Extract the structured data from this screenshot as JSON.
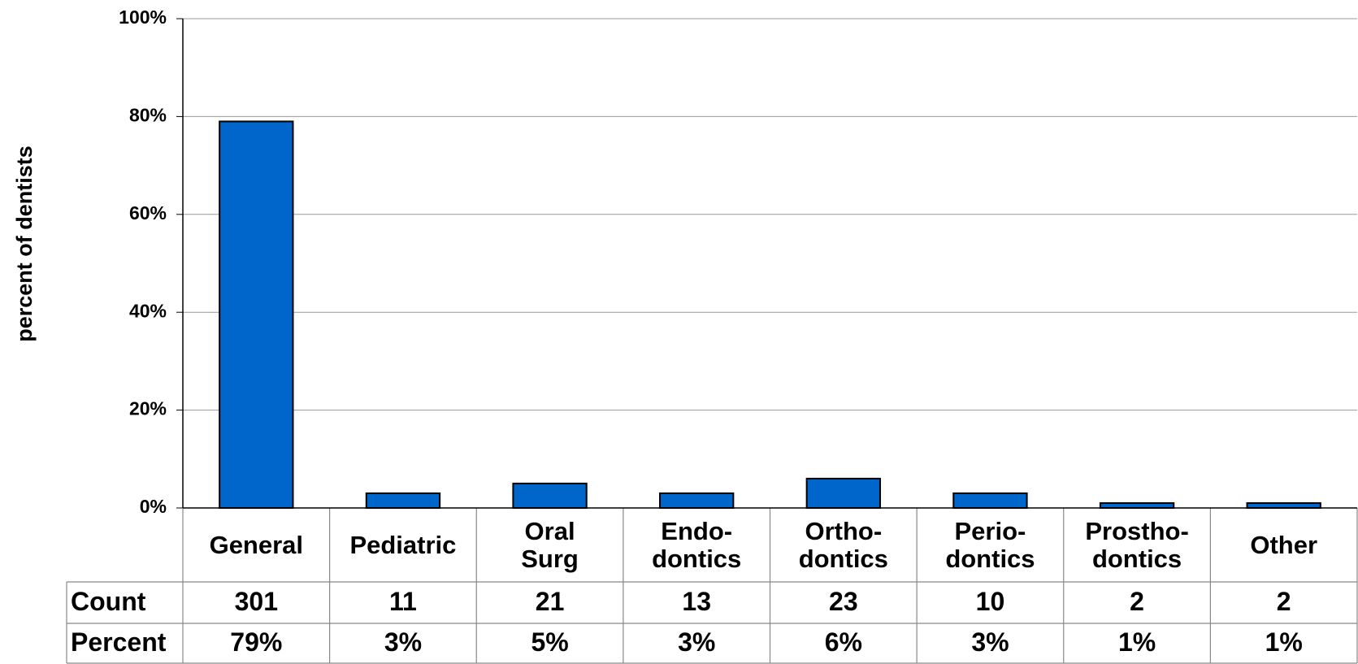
{
  "chart_data": {
    "type": "bar",
    "y_label": "percent of dentists",
    "categories": [
      "General",
      "Pediatric",
      "Oral\nSurg",
      "Endo-\ndontics",
      "Ortho-\ndontics",
      "Perio-\ndontics",
      "Prostho-\ndontics",
      "Other"
    ],
    "values": [
      79,
      3,
      5,
      3,
      6,
      3,
      1,
      1
    ],
    "value_labels": [
      "79%",
      "3%",
      "5%",
      "3%",
      "6%",
      "3%",
      "1%",
      "1%"
    ],
    "color": "#0066cc",
    "ylim": [
      0,
      100
    ],
    "yticks": [
      {
        "value": 0,
        "label": "0%"
      },
      {
        "value": 20,
        "label": "20%"
      },
      {
        "value": 40,
        "label": "40%"
      },
      {
        "value": 60,
        "label": "60%"
      },
      {
        "value": 80,
        "label": "80%"
      },
      {
        "value": 100,
        "label": "100%"
      }
    ],
    "grid": true,
    "table": {
      "count_label": "Count",
      "counts": [
        301,
        11,
        21,
        13,
        23,
        10,
        2,
        2
      ],
      "percent_label": "Percent"
    }
  }
}
